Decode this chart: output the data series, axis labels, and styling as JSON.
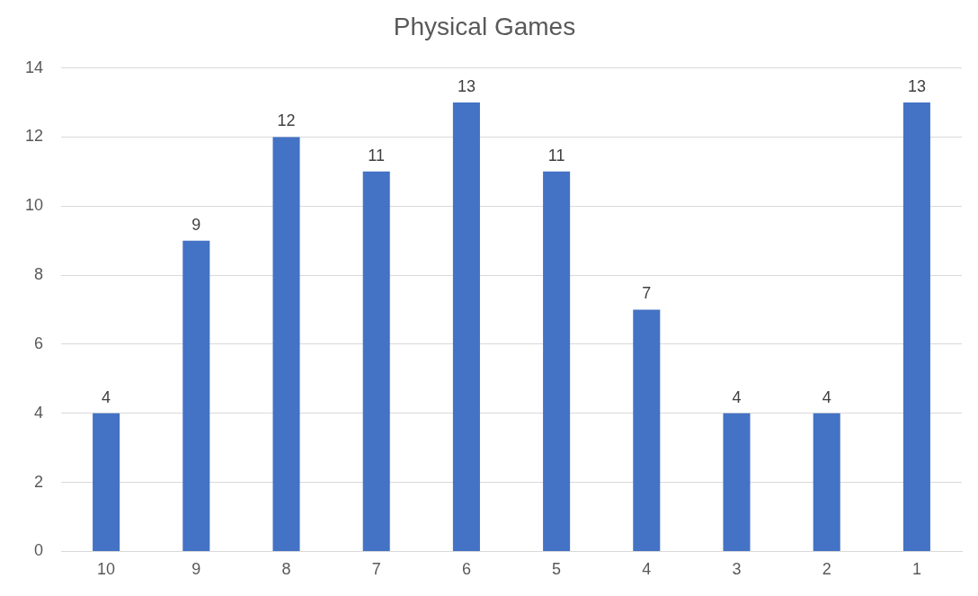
{
  "chart_data": {
    "type": "bar",
    "title": "Physical Games",
    "categories": [
      "10",
      "9",
      "8",
      "7",
      "6",
      "5",
      "4",
      "3",
      "2",
      "1"
    ],
    "values": [
      4,
      9,
      12,
      11,
      13,
      11,
      7,
      4,
      4,
      13
    ],
    "color": "#4472c4",
    "ylim": [
      0,
      14
    ],
    "yticks": [
      0,
      2,
      4,
      6,
      8,
      10,
      12,
      14
    ],
    "grid": "y",
    "data_labels": true
  }
}
